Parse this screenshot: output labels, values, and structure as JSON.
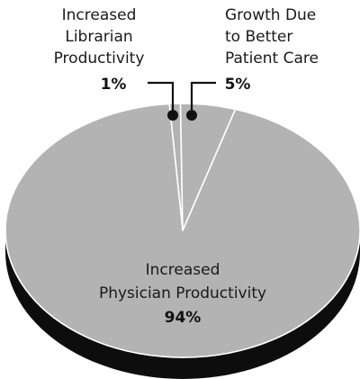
{
  "chart_data": {
    "type": "pie",
    "title": "",
    "slices": [
      {
        "label": "Increased Librarian Productivity",
        "value": 1,
        "value_label": "1%"
      },
      {
        "label": "Growth Due to Better Patient Care",
        "value": 5,
        "value_label": "5%"
      },
      {
        "label": "Increased Physician Productivity",
        "value": 94,
        "value_label": "94%"
      }
    ],
    "style": "3D tilted pie with dark shadow rim",
    "colors": {
      "slice_fill": "#b3b3b3",
      "separator": "#ffffff",
      "rim": "#0d0d0d",
      "leader": "#111111"
    }
  },
  "labels": {
    "librarian": {
      "line1": "Increased",
      "line2": "Librarian",
      "line3": "Productivity",
      "pct": "1%"
    },
    "growth": {
      "line1": "Growth Due",
      "line2": "to Better",
      "line3": "Patient Care",
      "pct": "5%"
    },
    "physician": {
      "line1": "Increased",
      "line2": "Physician Productivity",
      "pct": "94%"
    }
  }
}
